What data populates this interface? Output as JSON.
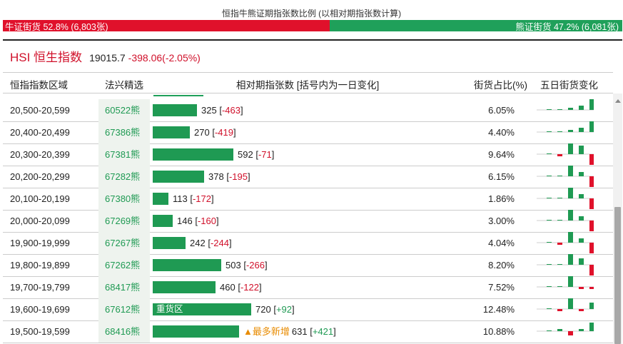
{
  "header": {
    "title": "恒指牛熊证期指张数比例 (以相对期指张数计算)",
    "bull_label": "牛证街货 52.8% (6,803张)",
    "bull_pct": 52.8,
    "bear_label": "熊证街货 47.2% (6,081张)",
    "bear_pct": 47.2
  },
  "index": {
    "name": "HSI 恒生指数",
    "value": "19015.7",
    "change": "-398.06(-2.05%)"
  },
  "columns": {
    "range": "恒指指数区域",
    "pick": "法兴精选",
    "contracts": "相对期指张数 [括号内为一日变化]",
    "share": "街货占比(%)",
    "five_day": "五日街货变化"
  },
  "colors": {
    "bull": "#e0112b",
    "bear": "#1fa05a",
    "bar": "#1f9a53",
    "tag": "#e88b00"
  },
  "max_contracts": 720,
  "rows": [
    {
      "range": "20,500-20,599",
      "code": "60522熊",
      "contracts": 325,
      "contracts_text": "325",
      "change": "-463",
      "share": "6.05%",
      "tag": "",
      "five_day": [
        0,
        0,
        1,
        2,
        5
      ]
    },
    {
      "range": "20,400-20,499",
      "code": "67386熊",
      "contracts": 270,
      "contracts_text": "270",
      "change": "-419",
      "share": "4.40%",
      "tag": "",
      "five_day": [
        0,
        0,
        1,
        2,
        5
      ]
    },
    {
      "range": "20,300-20,399",
      "code": "67381熊",
      "contracts": 592,
      "contracts_text": "592",
      "change": "-71",
      "share": "9.64%",
      "tag": "",
      "five_day": [
        0,
        -1,
        5,
        4,
        -5
      ]
    },
    {
      "range": "20,200-20,299",
      "code": "67282熊",
      "contracts": 378,
      "contracts_text": "378",
      "change": "-195",
      "share": "6.15%",
      "tag": "",
      "five_day": [
        0,
        0,
        5,
        2,
        -5
      ]
    },
    {
      "range": "20,100-20,199",
      "code": "67380熊",
      "contracts": 113,
      "contracts_text": "113",
      "change": "-172",
      "share": "1.86%",
      "tag": "",
      "five_day": [
        0,
        0,
        5,
        2,
        -5
      ]
    },
    {
      "range": "20,000-20,099",
      "code": "67269熊",
      "contracts": 146,
      "contracts_text": "146",
      "change": "-160",
      "share": "3.00%",
      "tag": "",
      "five_day": [
        0,
        0,
        5,
        2,
        -5
      ]
    },
    {
      "range": "19,900-19,999",
      "code": "67267熊",
      "contracts": 242,
      "contracts_text": "242",
      "change": "-244",
      "share": "4.04%",
      "tag": "",
      "five_day": [
        0,
        -1,
        5,
        2,
        -5
      ]
    },
    {
      "range": "19,800-19,899",
      "code": "67262熊",
      "contracts": 503,
      "contracts_text": "503",
      "change": "-266",
      "share": "8.20%",
      "tag": "",
      "five_day": [
        0,
        0,
        5,
        3,
        -5
      ]
    },
    {
      "range": "19,700-19,799",
      "code": "68417熊",
      "contracts": 460,
      "contracts_text": "460",
      "change": "-122",
      "share": "7.52%",
      "tag": "",
      "five_day": [
        0,
        0,
        5,
        -1,
        -1
      ]
    },
    {
      "range": "19,600-19,699",
      "code": "67612熊",
      "contracts": 720,
      "contracts_text": "720",
      "change": "+92",
      "share": "12.48%",
      "tag": "重货区",
      "tag_inside": true,
      "five_day": [
        0,
        -1,
        5,
        -1,
        3
      ]
    },
    {
      "range": "19,500-19,599",
      "code": "68416熊",
      "contracts": 631,
      "contracts_text": "631",
      "change": "+421",
      "share": "10.88%",
      "tag": "▲最多新增",
      "tag_inside": false,
      "five_day": [
        0,
        1,
        -2,
        1,
        4
      ]
    }
  ]
}
